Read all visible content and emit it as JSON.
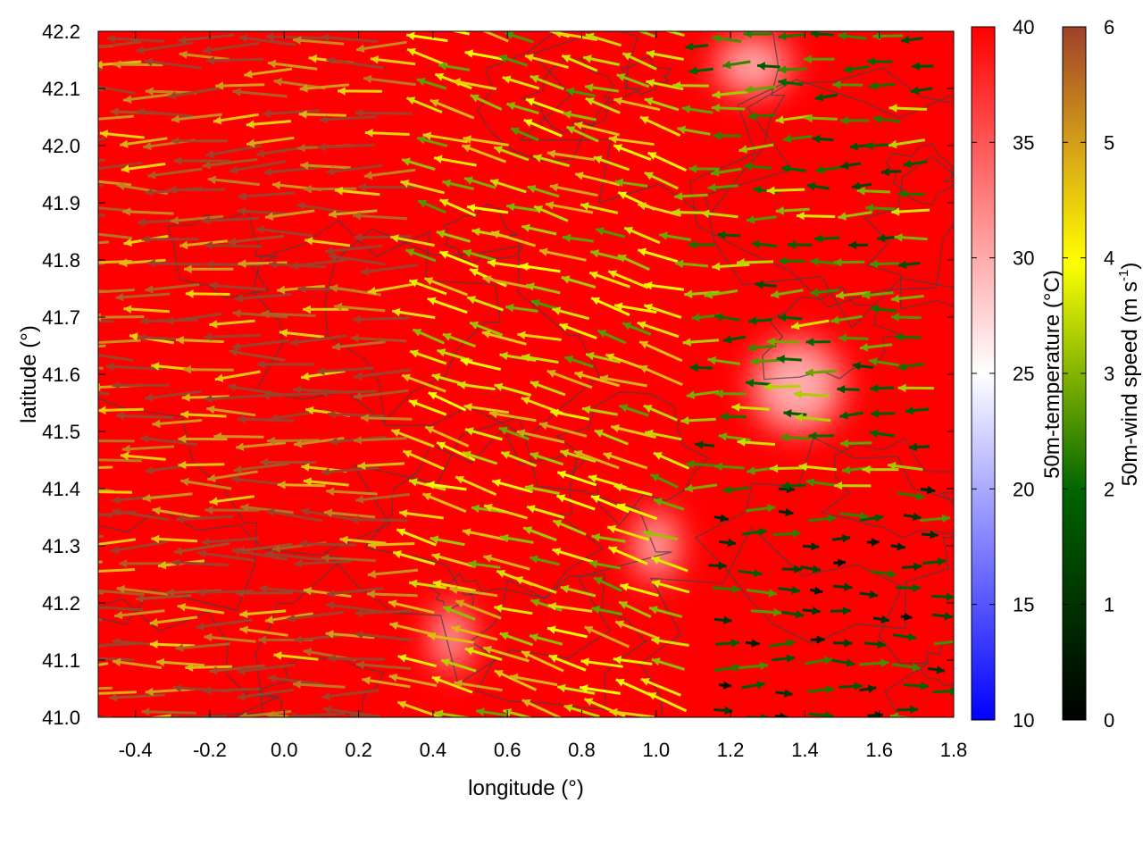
{
  "chart_data": {
    "type": "heatmap",
    "title": "",
    "xlabel": "longitude (°)",
    "ylabel": "latitude (°)",
    "xlim": [
      -0.5,
      1.8
    ],
    "ylim": [
      41.0,
      42.2
    ],
    "x_ticks": [
      "-0.4",
      "-0.2",
      "0.0",
      "0.2",
      "0.4",
      "0.6",
      "0.8",
      "1.0",
      "1.2",
      "1.4",
      "1.6",
      "1.8"
    ],
    "x_tick_values": [
      -0.4,
      -0.2,
      0.0,
      0.2,
      0.4,
      0.6,
      0.8,
      1.0,
      1.2,
      1.4,
      1.6,
      1.8
    ],
    "y_ticks": [
      "41.0",
      "41.1",
      "41.2",
      "41.3",
      "41.4",
      "41.5",
      "41.6",
      "41.7",
      "41.8",
      "41.9",
      "42.0",
      "42.1",
      "42.2"
    ],
    "y_tick_values": [
      41.0,
      41.1,
      41.2,
      41.3,
      41.4,
      41.5,
      41.6,
      41.7,
      41.8,
      41.9,
      42.0,
      42.1,
      42.2
    ],
    "temperature_colorbar": {
      "label": "50m-temperature (°C)",
      "range": [
        10,
        40
      ],
      "ticks": [
        "10",
        "15",
        "20",
        "25",
        "30",
        "35",
        "40"
      ],
      "tick_values": [
        10,
        15,
        20,
        25,
        30,
        35,
        40
      ],
      "colors": [
        "#0000ff",
        "#ffffff",
        "#ff0000"
      ]
    },
    "wind_colorbar": {
      "label": "50m-wind speed (m s",
      "label_sup": "-1",
      "label_end": ")",
      "range": [
        0,
        6
      ],
      "ticks": [
        "0",
        "1",
        "2",
        "3",
        "4",
        "5",
        "6"
      ],
      "tick_values": [
        0,
        1,
        2,
        3,
        4,
        5,
        6
      ],
      "colors": [
        "#000000",
        "#006400",
        "#ffff00",
        "#d4a017",
        "#a0402a"
      ]
    },
    "warm_zones": [
      {
        "lon": 1.26,
        "lat": 42.14,
        "spread_lon": 0.1,
        "spread_lat": 0.05
      },
      {
        "lon": 1.38,
        "lat": 41.58,
        "spread_lon": 0.12,
        "spread_lat": 0.08
      },
      {
        "lon": 1.0,
        "lat": 41.3,
        "spread_lon": 0.06,
        "spread_lat": 0.06
      },
      {
        "lon": 0.45,
        "lat": 41.14,
        "spread_lon": 0.05,
        "spread_lat": 0.06
      }
    ],
    "wind_field": {
      "region_1": {
        "lon_range": [
          -0.5,
          0.4
        ],
        "speed": 5.6,
        "direction": "west"
      },
      "region_2": {
        "lon_range": [
          0.4,
          1.1
        ],
        "speed": 3.8,
        "direction": "west-northwest"
      },
      "region_3": {
        "lon_range": [
          1.1,
          1.8
        ],
        "lat_range": [
          41.0,
          41.4
        ],
        "speed": 1.5,
        "direction": "east"
      },
      "region_4": {
        "lon_range": [
          1.1,
          1.8
        ],
        "lat_range": [
          41.4,
          42.2
        ],
        "speed": 2.5,
        "direction": "west"
      }
    }
  }
}
